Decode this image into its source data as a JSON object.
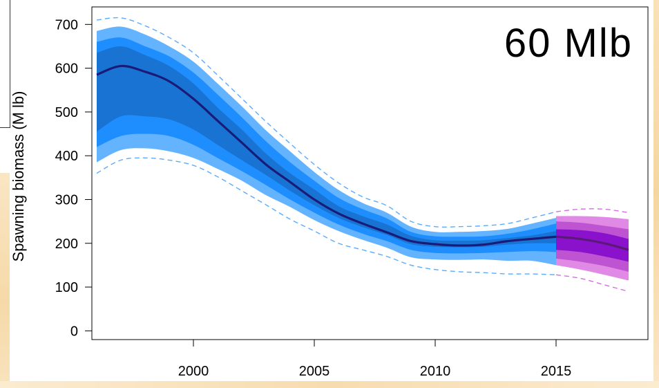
{
  "chart_data": {
    "type": "area",
    "title": "",
    "annotation": "60 Mlb",
    "ylabel": "Spawning biomass (M lb)",
    "xlabel": "",
    "xlim": [
      1995.8,
      2018.8
    ],
    "ylim": [
      -20,
      740
    ],
    "x_ticks": [
      2000,
      2005,
      2010,
      2015
    ],
    "y_ticks": [
      0,
      100,
      200,
      300,
      400,
      500,
      600,
      700
    ],
    "grid": false,
    "colors": {
      "hist_outer": "#63b3ff",
      "hist_mid": "#1e8eff",
      "hist_inner": "#1873d3",
      "hist_median": "#1a1a78",
      "hist_dashed": "#5aaaff",
      "proj_outer": "#e08ae6",
      "proj_mid": "#be54d2",
      "proj_inner": "#8a12cc",
      "proj_median": "#5c1877",
      "proj_dashed": "#d76ae6",
      "annotation": "#000000"
    },
    "historical": {
      "x": [
        1996,
        1997,
        1998,
        1999,
        2000,
        2001,
        2002,
        2003,
        2004,
        2005,
        2006,
        2007,
        2008,
        2009,
        2010,
        2011,
        2012,
        2013,
        2014,
        2015
      ],
      "median": [
        585,
        605,
        592,
        570,
        530,
        480,
        430,
        380,
        340,
        300,
        268,
        245,
        225,
        205,
        198,
        195,
        197,
        205,
        210,
        215
      ],
      "q05": [
        385,
        413,
        417,
        410,
        395,
        370,
        343,
        310,
        283,
        253,
        228,
        208,
        190,
        168,
        163,
        162,
        163,
        160,
        160,
        150
      ],
      "q10": [
        420,
        445,
        450,
        445,
        425,
        395,
        365,
        333,
        300,
        270,
        243,
        222,
        205,
        185,
        178,
        177,
        178,
        180,
        182,
        180
      ],
      "q25": [
        455,
        490,
        490,
        483,
        460,
        425,
        390,
        356,
        320,
        287,
        258,
        237,
        219,
        198,
        192,
        191,
        192,
        197,
        200,
        200
      ],
      "q75": [
        635,
        650,
        630,
        605,
        565,
        510,
        460,
        405,
        360,
        323,
        285,
        262,
        243,
        217,
        207,
        206,
        207,
        212,
        218,
        228
      ],
      "q90": [
        660,
        670,
        650,
        627,
        590,
        540,
        488,
        433,
        385,
        343,
        304,
        278,
        257,
        226,
        216,
        215,
        216,
        222,
        232,
        245
      ],
      "q95": [
        685,
        695,
        677,
        650,
        615,
        565,
        513,
        458,
        410,
        363,
        322,
        292,
        270,
        238,
        226,
        226,
        228,
        233,
        245,
        258
      ],
      "lower_dashed": [
        360,
        390,
        395,
        390,
        378,
        352,
        320,
        288,
        255,
        228,
        200,
        185,
        170,
        150,
        140,
        135,
        133,
        130,
        130,
        128
      ],
      "upper_dashed": [
        710,
        715,
        697,
        670,
        635,
        584,
        531,
        478,
        428,
        380,
        338,
        306,
        286,
        250,
        238,
        238,
        240,
        245,
        258,
        272
      ]
    },
    "projection": {
      "x": [
        2015,
        2016,
        2017,
        2018
      ],
      "median": [
        215,
        210,
        200,
        185
      ],
      "q05": [
        150,
        140,
        128,
        115
      ],
      "q10": [
        165,
        158,
        148,
        135
      ],
      "q25": [
        185,
        180,
        170,
        158
      ],
      "q75": [
        232,
        230,
        223,
        210
      ],
      "q90": [
        250,
        247,
        240,
        232
      ],
      "q95": [
        262,
        262,
        260,
        255
      ],
      "lower_dashed": [
        128,
        120,
        105,
        90
      ],
      "upper_dashed": [
        272,
        278,
        278,
        270
      ]
    }
  }
}
